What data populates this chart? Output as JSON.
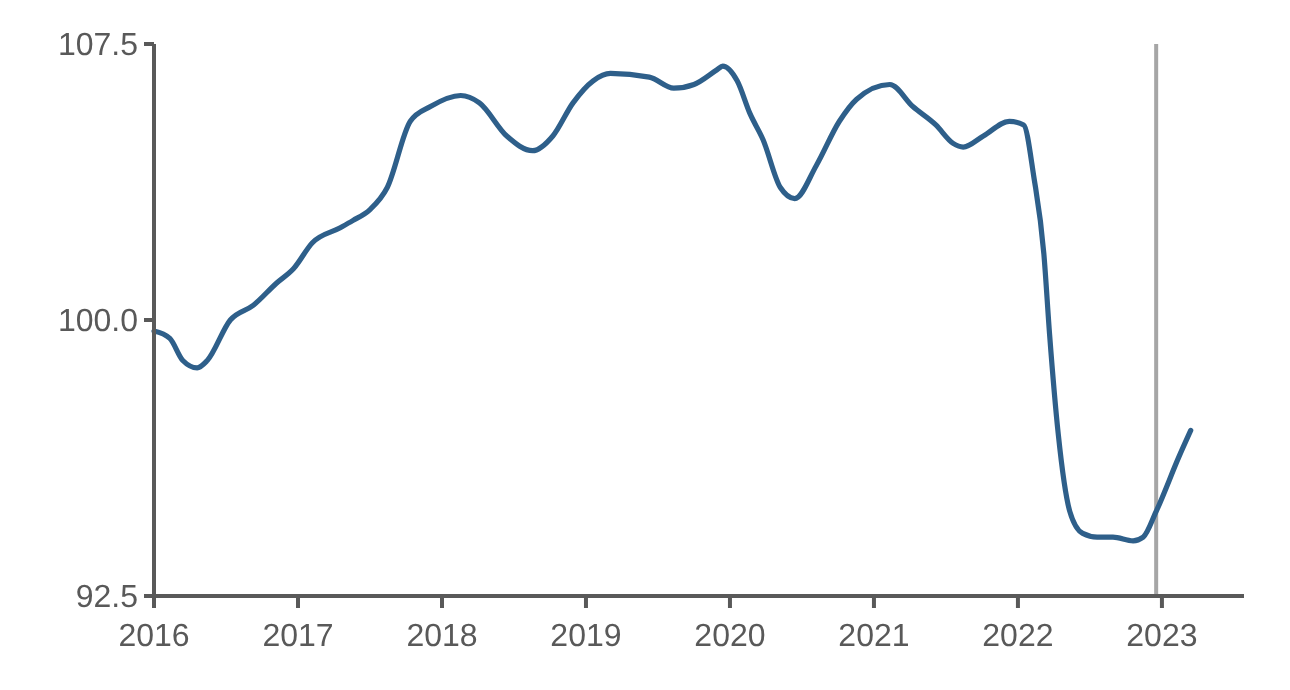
{
  "chart_data": {
    "type": "line",
    "x": [
      2016.0,
      2016.11,
      2016.2,
      2016.3,
      2016.37,
      2016.53,
      2016.69,
      2016.85,
      2016.97,
      2017.1,
      2017.29,
      2017.38,
      2017.5,
      2017.62,
      2017.78,
      2017.92,
      2018.13,
      2018.26,
      2018.45,
      2018.63,
      2018.77,
      2018.91,
      2019.05,
      2019.17,
      2019.44,
      2019.61,
      2019.75,
      2019.91,
      2019.95,
      2020.05,
      2020.14,
      2020.23,
      2020.35,
      2020.45,
      2020.6,
      2020.76,
      2020.88,
      2021.11,
      2021.27,
      2021.43,
      2021.55,
      2021.62,
      2021.76,
      2021.94,
      2022.04,
      2022.11,
      2022.18,
      2022.22,
      2022.28,
      2022.36,
      2022.45,
      2022.55,
      2022.66,
      2022.8,
      2022.87,
      2022.96,
      2023.12,
      2023.2
    ],
    "series": [
      {
        "color": "#2e5f8a",
        "values": [
          99.7,
          99.5,
          98.9,
          98.7,
          98.9,
          100.0,
          100.4,
          101.0,
          101.4,
          102.1,
          102.5,
          102.7,
          103.0,
          103.6,
          105.4,
          105.8,
          106.1,
          105.9,
          105.0,
          104.6,
          105.0,
          105.9,
          106.5,
          106.7,
          106.6,
          106.3,
          106.4,
          106.8,
          106.9,
          106.5,
          105.6,
          104.9,
          103.6,
          103.3,
          104.2,
          105.4,
          106.0,
          106.4,
          105.8,
          105.3,
          104.8,
          104.7,
          105.0,
          105.4,
          105.3,
          103.9,
          101.8,
          99.6,
          96.9,
          94.8,
          94.2,
          94.1,
          94.1,
          94.0,
          94.1,
          94.8,
          96.3,
          97.0
        ]
      }
    ],
    "xlim": [
      2016,
      2023.57
    ],
    "xticks": [
      2016,
      2017,
      2018,
      2019,
      2020,
      2021,
      2022,
      2023
    ],
    "ylim": [
      92.5,
      107.5
    ],
    "yticks": [
      {
        "value": 92.5,
        "label": "92.5"
      },
      {
        "value": 100,
        "label": "100.0"
      },
      {
        "value": 107.5,
        "label": "107.5"
      }
    ],
    "ref_lines": [
      {
        "axis": "x",
        "value": 2022.96,
        "color": "#a6a6a6"
      }
    ],
    "grid": false,
    "line_style": "solid",
    "marker": "none"
  }
}
